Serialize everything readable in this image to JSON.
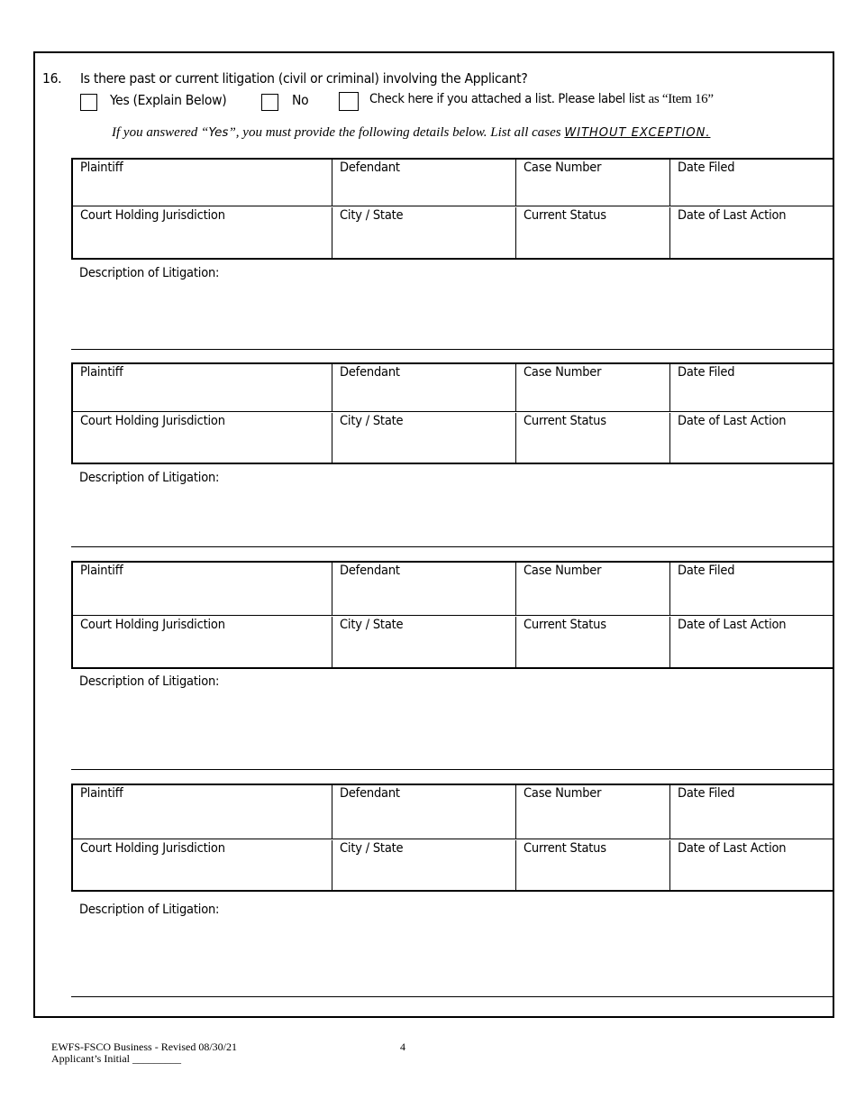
{
  "question": {
    "number": "16.",
    "text": "Is there past or current litigation (civil or criminal) involving the Applicant?",
    "options": {
      "yes_label": "Yes (Explain Below)",
      "no_label": "No",
      "attached_label": "Check here if you attached a list.  Please label list",
      "attached_label_serif": "as “Item 16”"
    },
    "note_prefix": "If you answered “",
    "note_yes": "Yes",
    "note_middle": "”, you must provide the following details below.  List all cases ",
    "note_emphasis": "WITHOUT EXCEPTION."
  },
  "case_fields": {
    "row1": [
      "Plaintiff",
      "Defendant",
      "Case Number",
      "Date Filed"
    ],
    "row2": [
      "Court Holding Jurisdiction",
      "City / State",
      "Current Status",
      "Date of Last Action"
    ],
    "description_label": "Description of Litigation:"
  },
  "footer": {
    "form_id": "EWFS-FSCO Business - Revised 08/30/21",
    "initial_label": "Applicant’s Initial _________",
    "page_number": "4"
  }
}
